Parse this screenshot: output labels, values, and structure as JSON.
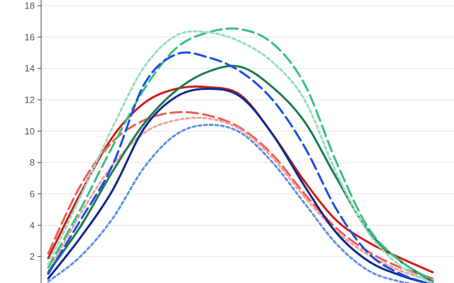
{
  "chart_data": {
    "type": "line",
    "title": "",
    "xlabel": "",
    "ylabel": "",
    "ylim": [
      0,
      18
    ],
    "xlim": [
      0,
      12
    ],
    "y_ticks": [
      "2",
      "4",
      "6",
      "8",
      "10",
      "12",
      "14",
      "16",
      "18"
    ],
    "grid": true,
    "legend": "none",
    "x": [
      0,
      1,
      2,
      3,
      4,
      5,
      6,
      7,
      8,
      9,
      10,
      11,
      12
    ],
    "series": [
      {
        "color": "#cc1f1a",
        "style": "solid",
        "width": 3,
        "values": [
          1.9,
          6.0,
          9.6,
          11.8,
          12.7,
          12.8,
          12.3,
          9.8,
          6.8,
          4.3,
          2.9,
          1.9,
          1.0
        ]
      },
      {
        "color": "#ee6055",
        "style": "dashed",
        "width": 3,
        "values": [
          2.2,
          6.5,
          9.3,
          10.7,
          11.2,
          11.0,
          10.2,
          8.5,
          6.0,
          3.8,
          2.3,
          1.3,
          0.6
        ]
      },
      {
        "color": "#f4a09a",
        "style": "dotted",
        "width": 3,
        "values": [
          1.0,
          4.7,
          7.8,
          9.9,
          10.7,
          10.8,
          10.1,
          8.3,
          5.8,
          3.6,
          2.1,
          1.1,
          0.4
        ]
      },
      {
        "color": "#1f7a50",
        "style": "solid",
        "width": 3,
        "values": [
          1.0,
          3.9,
          7.4,
          10.5,
          12.6,
          13.8,
          14.1,
          12.8,
          10.6,
          7.0,
          3.6,
          1.7,
          0.4
        ]
      },
      {
        "color": "#3dbf80",
        "style": "dashed",
        "width": 3,
        "values": [
          1.3,
          5.0,
          9.0,
          12.7,
          15.3,
          16.3,
          16.5,
          15.6,
          13.0,
          8.0,
          3.8,
          1.7,
          0.5
        ]
      },
      {
        "color": "#98dcc0",
        "style": "dotted",
        "width": 3,
        "values": [
          1.5,
          5.8,
          10.2,
          14.1,
          16.1,
          16.3,
          15.7,
          14.4,
          12.0,
          7.3,
          3.5,
          1.4,
          0.3
        ]
      },
      {
        "color": "#0e2a8c",
        "style": "solid",
        "width": 3,
        "values": [
          0.6,
          3.2,
          6.2,
          10.2,
          12.2,
          12.7,
          12.2,
          9.8,
          6.5,
          3.5,
          1.7,
          0.8,
          0.2
        ]
      },
      {
        "color": "#1a50e0",
        "style": "dashed",
        "width": 3,
        "values": [
          0.9,
          4.3,
          7.8,
          13.0,
          14.9,
          14.7,
          13.8,
          12.0,
          9.0,
          5.0,
          2.2,
          0.9,
          0.2
        ]
      },
      {
        "color": "#6090e8",
        "style": "dotted",
        "width": 3,
        "values": [
          0.4,
          2.0,
          4.4,
          7.7,
          9.8,
          10.4,
          9.9,
          8.0,
          5.4,
          2.8,
          1.1,
          0.4,
          0.1
        ]
      }
    ]
  }
}
